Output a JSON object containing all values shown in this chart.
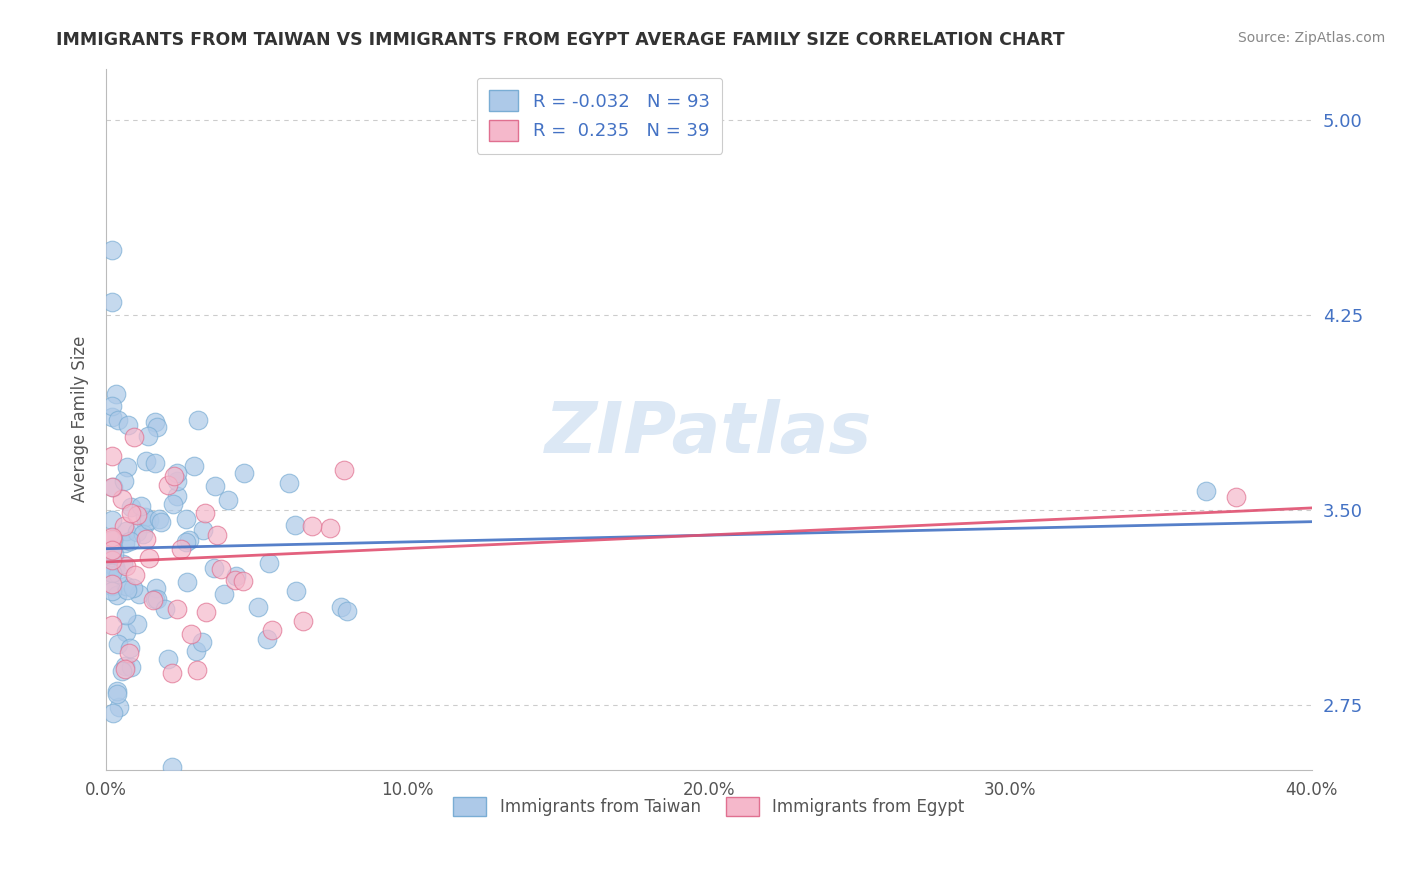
{
  "title": "IMMIGRANTS FROM TAIWAN VS IMMIGRANTS FROM EGYPT AVERAGE FAMILY SIZE CORRELATION CHART",
  "source": "Source: ZipAtlas.com",
  "ylabel": "Average Family Size",
  "xlim": [
    0.0,
    0.4
  ],
  "ylim": [
    2.5,
    5.2
  ],
  "yticks": [
    2.75,
    3.5,
    4.25,
    5.0
  ],
  "xticks": [
    0.0,
    0.1,
    0.2,
    0.3,
    0.4
  ],
  "xtick_labels": [
    "0.0%",
    "10.0%",
    "20.0%",
    "30.0%",
    "40.0%"
  ],
  "taiwan_R": -0.032,
  "taiwan_N": 93,
  "egypt_R": 0.235,
  "egypt_N": 39,
  "taiwan_fill_color": "#adc9e8",
  "egypt_fill_color": "#f5b8cb",
  "taiwan_edge_color": "#7aadd4",
  "egypt_edge_color": "#e07090",
  "taiwan_line_color": "#4472c4",
  "egypt_line_color": "#e05070",
  "watermark_color": "#dce8f5",
  "grid_color": "#cccccc",
  "ytick_color": "#4472c4",
  "title_color": "#333333",
  "source_color": "#888888",
  "ylabel_color": "#555555"
}
